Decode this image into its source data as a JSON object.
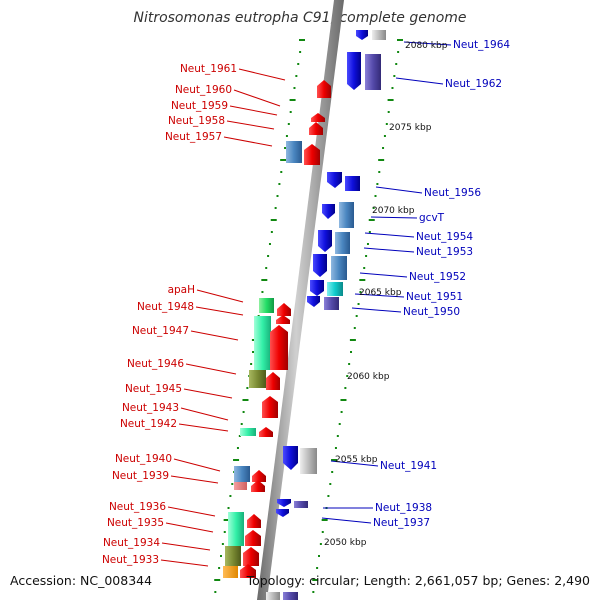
{
  "title": "Nitrosomonas eutropha C91, complete genome",
  "footer": {
    "accession": "Accession: NC_008344",
    "topology": "Topology: circular; Length: 2,661,057 bp; Genes: 2,490"
  },
  "kbp_labels": [
    "2080 kbp",
    "2075 kbp",
    "2070 kbp",
    "2065 kbp",
    "2060 kbp",
    "2055 kbp",
    "2050 kbp"
  ],
  "genes_left": [
    "Neut_1961",
    "Neut_1960",
    "Neut_1959",
    "Neut_1958",
    "Neut_1957",
    "apaH",
    "Neut_1948",
    "Neut_1947",
    "Neut_1946",
    "Neut_1945",
    "Neut_1943",
    "Neut_1942",
    "Neut_1940",
    "Neut_1939",
    "Neut_1936",
    "Neut_1935",
    "Neut_1934",
    "Neut_1933"
  ],
  "genes_right": [
    "Neut_1964",
    "Neut_1962",
    "Neut_1956",
    "gcvT",
    "Neut_1954",
    "Neut_1953",
    "Neut_1952",
    "Neut_1951",
    "Neut_1950",
    "Neut_1941",
    "Neut_1938",
    "Neut_1937"
  ],
  "colors": {
    "forward_strand": "#ee0000",
    "reverse_strand": "#1010dd",
    "label_left": "#cc0000",
    "label_right": "#0000bb",
    "backbone": "#909090",
    "tick": "#118811"
  }
}
